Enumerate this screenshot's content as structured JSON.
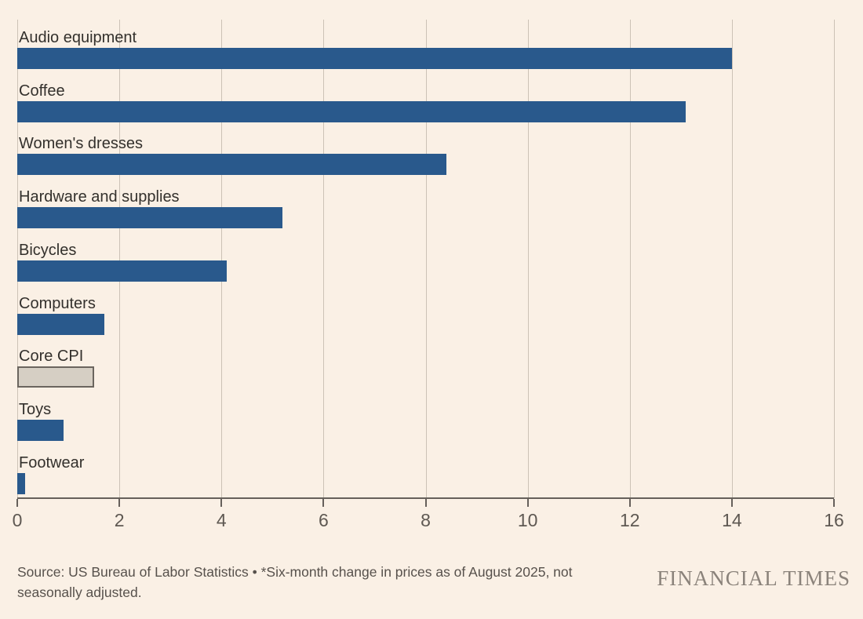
{
  "chart_data": {
    "type": "bar",
    "orientation": "horizontal",
    "categories": [
      "Audio equipment",
      "Coffee",
      "Women's dresses",
      "Hardware and supplies",
      "Bicycles",
      "Computers",
      "Core CPI",
      "Toys",
      "Footwear"
    ],
    "values": [
      14.0,
      13.1,
      8.4,
      5.2,
      4.1,
      1.7,
      1.5,
      0.9,
      0.15
    ],
    "highlight_category": "Core CPI",
    "xlim": [
      0,
      16
    ],
    "xticks": [
      0,
      2,
      4,
      6,
      8,
      10,
      12,
      14,
      16
    ],
    "grid": "vertical",
    "legend": "none",
    "title": "",
    "xlabel": "",
    "ylabel": "",
    "bar_color": "#29598C",
    "highlight_fill": "#D6CFC4",
    "highlight_border": "#6B655E"
  },
  "footer": {
    "source": "Source: US Bureau of Labor Statistics • *Six-month change in prices as of August 2025, not seasonally adjusted.",
    "brand": "FINANCIAL TIMES"
  },
  "colors": {
    "background": "#FAF0E5",
    "gridline": "#CCC2B6",
    "axis": "#66605B",
    "label": "#33302C",
    "tick_label": "#5E5852",
    "source_text": "#57514C",
    "brand_text": "#8B837B"
  }
}
